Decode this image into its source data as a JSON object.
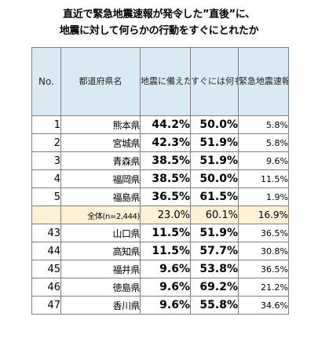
{
  "title": {
    "line1": "直近で緊急地震速報が発令した”直後”に、",
    "line2": "地震に対して何らかの行動をすぐにとれたか"
  },
  "headers": {
    "no": "No.",
    "prefecture": "都道府県名",
    "col1": "地震に備えた行動がすぐできた",
    "col2": "すぐには何もできなかった",
    "col3": "緊急地震速報を聞いたことがない"
  },
  "top_rows": [
    {
      "no": "1",
      "pref": "熊本県",
      "v1": "44.2%",
      "v2": "50.0%",
      "v3": "5.8%"
    },
    {
      "no": "2",
      "pref": "宮城県",
      "v1": "42.3%",
      "v2": "51.9%",
      "v3": "5.8%"
    },
    {
      "no": "3",
      "pref": "青森県",
      "v1": "38.5%",
      "v2": "51.9%",
      "v3": "9.6%"
    },
    {
      "no": "4",
      "pref": "福岡県",
      "v1": "38.5%",
      "v2": "50.0%",
      "v3": "11.5%"
    },
    {
      "no": "5",
      "pref": "福島県",
      "v1": "36.5%",
      "v2": "61.5%",
      "v3": "1.9%"
    }
  ],
  "total": {
    "label": "全体(n=2,444)",
    "v1": "23.0%",
    "v2": "60.1%",
    "v3": "16.9%"
  },
  "bottom_rows": [
    {
      "no": "43",
      "pref": "山口県",
      "v1": "11.5%",
      "v2": "51.9%",
      "v3": "36.5%"
    },
    {
      "no": "44",
      "pref": "高知県",
      "v1": "11.5%",
      "v2": "57.7%",
      "v3": "30.8%"
    },
    {
      "no": "45",
      "pref": "福井県",
      "v1": "9.6%",
      "v2": "53.8%",
      "v3": "36.5%"
    },
    {
      "no": "46",
      "pref": "徳島県",
      "v1": "9.6%",
      "v2": "69.2%",
      "v3": "21.2%"
    },
    {
      "no": "47",
      "pref": "香川県",
      "v1": "9.6%",
      "v2": "55.8%",
      "v3": "34.6%"
    }
  ],
  "colors": {
    "header_bg": "#d9eaf4",
    "total_bg": "#fdf0d4",
    "border": "#7f7f7f"
  }
}
